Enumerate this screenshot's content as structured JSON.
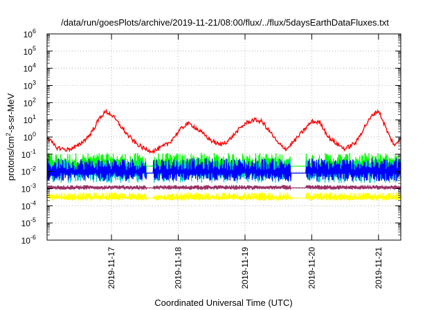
{
  "chart_data": {
    "type": "line",
    "title": "/data/run/goesPlots/archive/2019-11-21/08:00/flux/../flux/5daysEarthDataFluxes.txt",
    "xlabel": "Coordinated Universal Time (UTC)",
    "ylabel_parts": [
      "protons/cm",
      "2",
      "-s-sr-MeV"
    ],
    "y_scale": "log",
    "ylim": [
      1e-06,
      1000000.0
    ],
    "y_ticks": [
      {
        "base": "10",
        "exp": "-6"
      },
      {
        "base": "10",
        "exp": "-5"
      },
      {
        "base": "10",
        "exp": "-4"
      },
      {
        "base": "10",
        "exp": "-3"
      },
      {
        "base": "10",
        "exp": "-2"
      },
      {
        "base": "10",
        "exp": "-1"
      },
      {
        "base": "10",
        "exp": "0"
      },
      {
        "base": "10",
        "exp": "1"
      },
      {
        "base": "10",
        "exp": "2"
      },
      {
        "base": "10",
        "exp": "3"
      },
      {
        "base": "10",
        "exp": "4"
      },
      {
        "base": "10",
        "exp": "5"
      },
      {
        "base": "10",
        "exp": "6"
      }
    ],
    "xlim": [
      "2019-11-16T00:50",
      "2019-11-21T08:00"
    ],
    "x_ticks": [
      "2019-11-17",
      "2019-11-18",
      "2019-11-19",
      "2019-11-20",
      "2019-11-21"
    ],
    "grid": true,
    "series": [
      {
        "color": "#ff0000",
        "x": [
          "2019-11-16T00:50",
          "2019-11-16T04:00",
          "2019-11-16T08:00",
          "2019-11-16T12:00",
          "2019-11-16T16:00",
          "2019-11-16T18:00",
          "2019-11-16T20:00",
          "2019-11-16T22:00",
          "2019-11-17T00:00",
          "2019-11-17T03:00",
          "2019-11-17T06:00",
          "2019-11-17T09:00",
          "2019-11-17T12:00",
          "2019-11-17T15:00",
          "2019-11-17T18:00",
          "2019-11-17T21:00",
          "2019-11-18T00:00",
          "2019-11-18T03:00",
          "2019-11-18T05:00",
          "2019-11-18T09:00",
          "2019-11-18T12:00",
          "2019-11-18T15:00",
          "2019-11-18T18:00",
          "2019-11-18T21:00",
          "2019-11-19T00:00",
          "2019-11-19T03:00",
          "2019-11-19T06:00",
          "2019-11-19T09:00",
          "2019-11-19T12:00",
          "2019-11-19T15:00",
          "2019-11-19T16:00",
          "2019-11-19T19:00",
          "2019-11-20T00:00",
          "2019-11-20T03:00",
          "2019-11-20T06:00",
          "2019-11-20T09:00",
          "2019-11-20T12:00",
          "2019-11-20T16:00",
          "2019-11-20T19:00",
          "2019-11-20T22:00",
          "2019-11-21T00:00",
          "2019-11-21T02:00",
          "2019-11-21T04:00",
          "2019-11-21T06:00",
          "2019-11-21T08:00"
        ],
        "values": [
          1.0,
          0.25,
          0.18,
          0.3,
          1.2,
          4,
          15,
          30,
          20,
          5,
          1.2,
          0.4,
          0.2,
          0.15,
          0.25,
          0.5,
          2,
          6,
          5,
          1.5,
          0.6,
          0.35,
          0.6,
          2,
          6,
          10,
          8,
          2,
          0.4,
          0.2,
          0.3,
          1,
          8,
          7,
          1,
          0.4,
          0.2,
          0.5,
          4,
          20,
          35,
          6,
          1,
          0.3,
          1.0
        ]
      },
      {
        "color": "#00ff00",
        "band": [
          0.004,
          0.12
        ],
        "mean": 0.02
      },
      {
        "color": "#00cccc",
        "band": [
          0.0015,
          0.05
        ],
        "mean": 0.008
      },
      {
        "color": "#0000ff",
        "band": [
          0.002,
          0.06
        ],
        "mean": 0.008
      },
      {
        "color": "#993366",
        "band": [
          0.0008,
          0.0016
        ],
        "mean": 0.0011
      },
      {
        "color": "#ffff00",
        "band": [
          0.00018,
          0.0006
        ],
        "mean": 0.00028
      }
    ]
  }
}
